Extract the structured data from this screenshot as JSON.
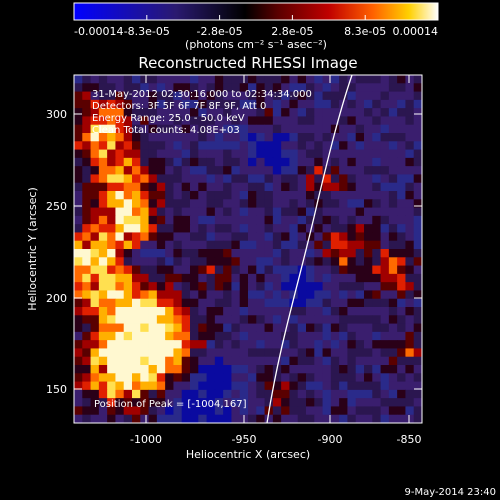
{
  "colorbar": {
    "tick_labels": [
      "-0.00014",
      "-8.3e-05",
      "-2.8e-05",
      "2.8e-05",
      "8.3e-05",
      "0.00014"
    ],
    "units_label": "(photons cm⁻² s⁻¹ asec⁻²)",
    "stops": [
      "#0000ff",
      "#2a1a70",
      "#000000",
      "#5a0000",
      "#c00000",
      "#ff6000",
      "#ffd000",
      "#ffffff"
    ]
  },
  "image": {
    "title": "Reconstructed RHESSI Image",
    "info_lines": [
      "31-May-2012 02:30:16.000 to 02:34:34.000",
      "Detectors: 3F 5F 6F 7F 8F 9F, Att 0",
      "Energy Range: 25.0 - 50.0 keV",
      "Clean      Total counts: 4.08E+03"
    ],
    "peak_label": "Position of Peak = [-1004,167]",
    "xlabel": "Heliocentric X (arcsec)",
    "ylabel": "Heliocentric Y (arcsec)",
    "x_ticks": [
      "-1000",
      "-950",
      "-900",
      "-850"
    ],
    "y_ticks": [
      "150",
      "200",
      "250",
      "300"
    ],
    "xlim": [
      -1043,
      -841
    ],
    "ylim": [
      136,
      322
    ]
  },
  "footer": {
    "timestamp": "9-May-2014 23:40"
  }
}
